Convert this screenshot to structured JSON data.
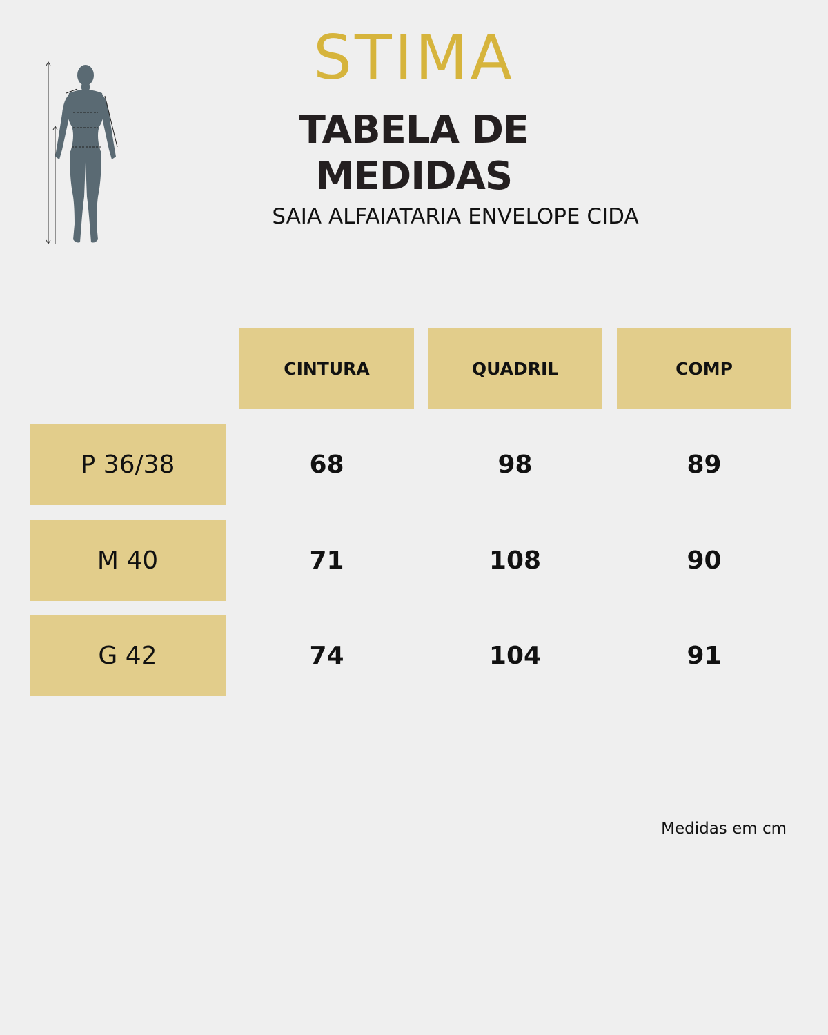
{
  "brand": "STIMA",
  "title": "TABELA DE MEDIDAS",
  "product": "SAIA ALFAIATARIA ENVELOPE CIDA",
  "columns": [
    "CINTURA",
    "QUADRIL",
    "COMP"
  ],
  "rows": [
    {
      "size": "P 36/38",
      "values": [
        "68",
        "98",
        "89"
      ]
    },
    {
      "size": "M 40",
      "values": [
        "71",
        "108",
        "90"
      ]
    },
    {
      "size": "G 42",
      "values": [
        "74",
        "104",
        "91"
      ]
    }
  ],
  "footnote": "Medidas em cm",
  "colors": {
    "background": "#efefef",
    "brand_gold": "#d6b43c",
    "header_fill": "#e2cd8b",
    "figure": "#5a6a73"
  },
  "icons": {
    "figure": "body-measurement-figure-icon"
  }
}
